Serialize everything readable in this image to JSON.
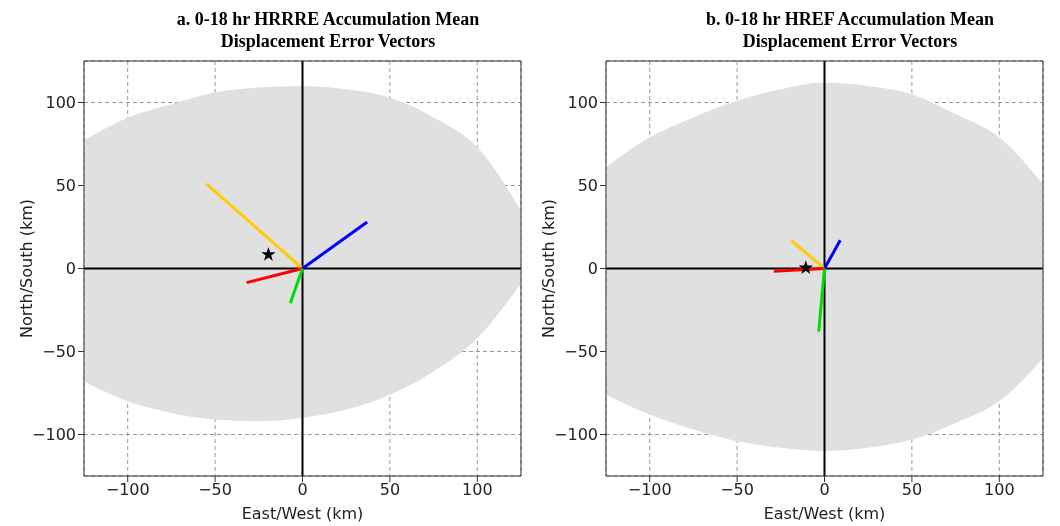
{
  "chart_data": [
    {
      "type": "line",
      "title": "a.    0-18 hr HRRRE Accumulation Mean Displacement Error Vectors",
      "xlabel": "East/West (km)",
      "ylabel": "North/South (km)",
      "xlim": [
        -125,
        125
      ],
      "ylim": [
        -125,
        125
      ],
      "xticks": [
        -100,
        -50,
        0,
        50,
        100
      ],
      "yticks": [
        -100,
        -50,
        0,
        50,
        100
      ],
      "grid": true,
      "series": [
        {
          "type": "area",
          "color": "#e0e0e0",
          "x": [
            -125,
            -100,
            -75,
            -50,
            -25,
            0,
            25,
            50,
            75,
            100,
            125
          ],
          "values": [
            77,
            91,
            99,
            106,
            109,
            110,
            108,
            103,
            91,
            73,
            35
          ]
        },
        {
          "type": "area",
          "color": "#e0e0e0",
          "x": [
            -125,
            -100,
            -75,
            -50,
            -25,
            0,
            25,
            50,
            75,
            100,
            125
          ],
          "values": [
            -68,
            -80,
            -87,
            -91,
            -92,
            -90,
            -85,
            -76,
            -62,
            -42,
            -9
          ]
        },
        {
          "type": "line",
          "color": "#000000",
          "x": [
            -125,
            125
          ],
          "values": [
            0,
            0
          ]
        },
        {
          "type": "line",
          "color": "#000000",
          "x": [
            0,
            0
          ],
          "values": [
            -125,
            125
          ]
        },
        {
          "type": "line",
          "color": "#ffcc00",
          "x": [
            0,
            -55
          ],
          "values": [
            0,
            51
          ]
        },
        {
          "type": "line",
          "color": "#0000ff",
          "x": [
            0,
            37
          ],
          "values": [
            0,
            28
          ]
        },
        {
          "type": "line",
          "color": "#ff0000",
          "x": [
            0,
            -32
          ],
          "values": [
            0,
            -8.5
          ]
        },
        {
          "type": "line",
          "color": "#00dd00",
          "x": [
            0,
            -7
          ],
          "values": [
            0,
            -21
          ]
        },
        {
          "type": "scatter",
          "color": "#000000",
          "marker": "star",
          "x": [
            -19.5
          ],
          "values": [
            8.4
          ]
        }
      ]
    },
    {
      "type": "line",
      "title": "b.    0-18 hr HREF Accumulation Mean Displacement Error Vectors",
      "xlabel": "East/West (km)",
      "ylabel": "North/South (km)",
      "xlim": [
        -125,
        125
      ],
      "ylim": [
        -125,
        125
      ],
      "xticks": [
        -100,
        -50,
        0,
        50,
        100
      ],
      "yticks": [
        -100,
        -50,
        0,
        50,
        100
      ],
      "grid": true,
      "series": [
        {
          "type": "area",
          "color": "#e0e0e0",
          "x": [
            -125,
            -100,
            -75,
            -50,
            -25,
            0,
            25,
            50,
            75,
            100,
            125
          ],
          "values": [
            61,
            79,
            91,
            101,
            108,
            112,
            110,
            105,
            93,
            79,
            51
          ]
        },
        {
          "type": "area",
          "color": "#e0e0e0",
          "x": [
            -125,
            -100,
            -75,
            -50,
            -25,
            0,
            25,
            50,
            75,
            100,
            125
          ],
          "values": [
            -76,
            -88,
            -97,
            -104,
            -108,
            -110,
            -108,
            -103,
            -93,
            -80,
            -54
          ]
        },
        {
          "type": "line",
          "color": "#000000",
          "x": [
            -125,
            125
          ],
          "values": [
            0,
            0
          ]
        },
        {
          "type": "line",
          "color": "#000000",
          "x": [
            0,
            0
          ],
          "values": [
            -125,
            125
          ]
        },
        {
          "type": "line",
          "color": "#ffcc00",
          "x": [
            0,
            -19
          ],
          "values": [
            0,
            17
          ]
        },
        {
          "type": "line",
          "color": "#0000ff",
          "x": [
            0,
            9
          ],
          "values": [
            0,
            17
          ]
        },
        {
          "type": "line",
          "color": "#ff0000",
          "x": [
            0,
            -29
          ],
          "values": [
            0,
            -1.6
          ]
        },
        {
          "type": "line",
          "color": "#00dd00",
          "x": [
            0,
            -3.3
          ],
          "values": [
            0,
            -38
          ]
        },
        {
          "type": "scatter",
          "color": "#000000",
          "marker": "star",
          "x": [
            -10.7
          ],
          "values": [
            0.4
          ]
        }
      ]
    }
  ]
}
